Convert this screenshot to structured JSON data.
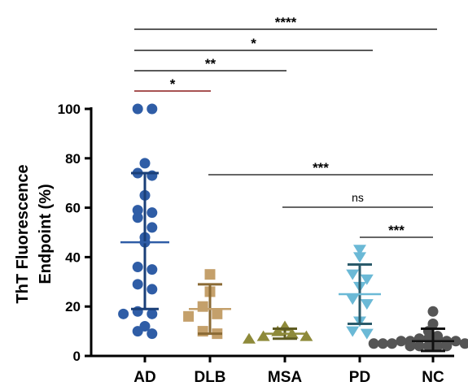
{
  "chart_data": {
    "type": "scatter",
    "ylabel_lines": [
      "ThT Fluorescence",
      "Endpoint (%)"
    ],
    "ylim": [
      0,
      100
    ],
    "yticks": [
      "0",
      "20",
      "40",
      "60",
      "80",
      "100"
    ],
    "grid": false,
    "categories": [
      "AD",
      "DLB",
      "MSA",
      "PD",
      "NC"
    ],
    "groups": [
      {
        "category": "AD",
        "color": "#2f5da6",
        "marker": "circle",
        "mean": 46,
        "sd_low": 19,
        "sd_high": 74,
        "points": [
          100,
          100,
          78,
          74,
          73,
          65,
          59,
          58,
          56,
          52,
          48,
          46,
          36,
          35,
          29,
          27,
          18,
          17,
          17,
          12,
          10,
          9
        ]
      },
      {
        "category": "DLB",
        "color": "#c4a06b",
        "marker": "square",
        "mean": 19,
        "sd_low": 9,
        "sd_high": 29,
        "points": [
          33,
          26,
          20,
          17,
          16,
          10,
          9
        ]
      },
      {
        "category": "MSA",
        "color": "#8e8a3a",
        "marker": "triangle-up",
        "mean": 9,
        "sd_low": 7,
        "sd_high": 11,
        "points": [
          12,
          10,
          9,
          8,
          8,
          7
        ]
      },
      {
        "category": "PD",
        "color": "#6bb9d6",
        "marker": "triangle-down",
        "mean": 25,
        "sd_low": 13,
        "sd_high": 37,
        "points": [
          43,
          40,
          33,
          31,
          28,
          23,
          21,
          14,
          10,
          9
        ]
      },
      {
        "category": "NC",
        "color": "#555555",
        "marker": "circle",
        "mean": 6,
        "sd_low": 2,
        "sd_high": 11,
        "points": [
          18,
          13,
          10,
          8,
          7,
          7,
          7,
          6,
          6,
          6,
          6,
          5,
          5,
          5,
          5,
          5,
          5,
          4,
          4,
          4,
          4,
          4
        ]
      }
    ],
    "comparisons": [
      {
        "from": "AD",
        "to": "NC",
        "label": "****",
        "tier": "top"
      },
      {
        "from": "AD",
        "to": "PD",
        "label": "*",
        "tier": "top"
      },
      {
        "from": "AD",
        "to": "MSA",
        "label": "**",
        "tier": "top"
      },
      {
        "from": "AD",
        "to": "DLB",
        "label": "*",
        "tier": "top"
      },
      {
        "from": "DLB",
        "to": "NC",
        "label": "***",
        "tier": "lower"
      },
      {
        "from": "MSA",
        "to": "NC",
        "label": "ns",
        "tier": "lower"
      },
      {
        "from": "PD",
        "to": "NC",
        "label": "***",
        "tier": "lower"
      }
    ],
    "colors": {
      "axis": "#000000",
      "sig_top_line": "#222222",
      "sig_dlb_line": "#8b1a1a",
      "sig_lower_line": "#333333"
    }
  }
}
